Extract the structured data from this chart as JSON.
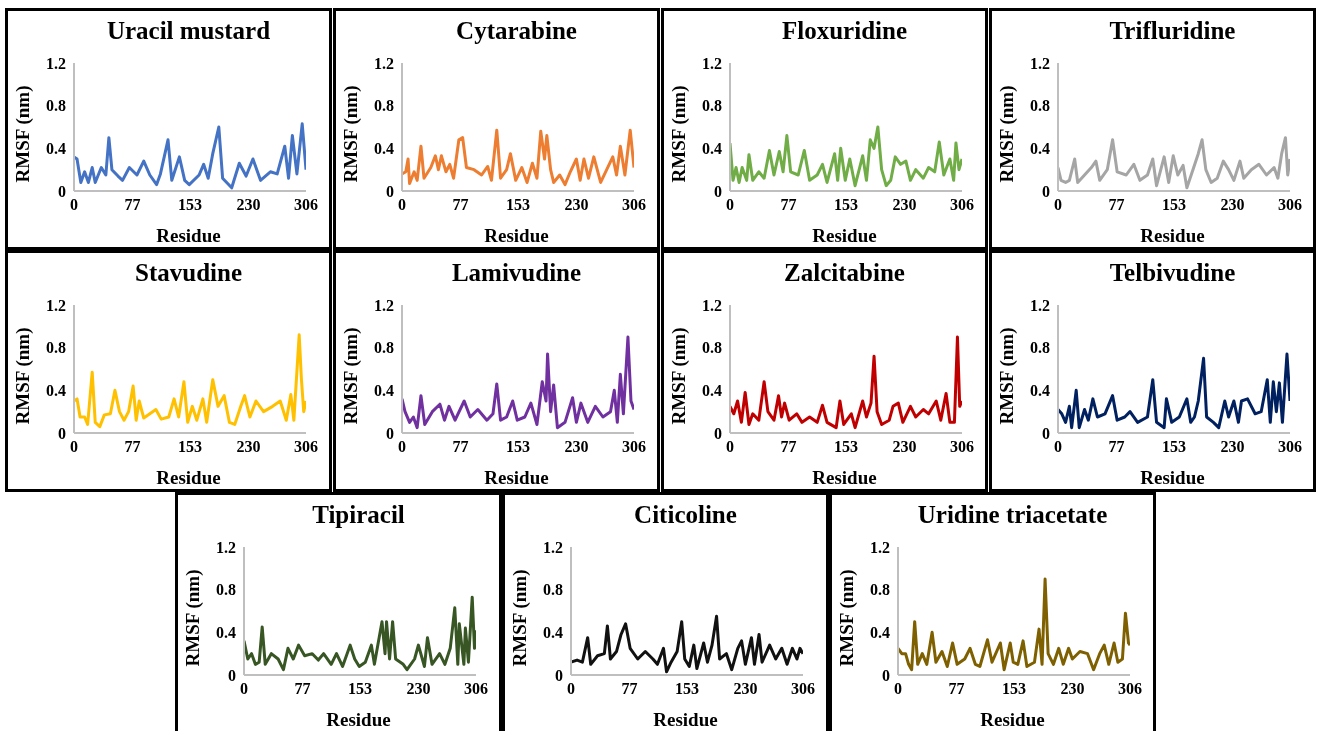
{
  "chart_data": [
    {
      "type": "line",
      "title": "Uracil mustard",
      "xlabel": "Residue",
      "ylabel": "RMSF (nm)",
      "xlim": [
        0,
        306
      ],
      "xticks": [
        0,
        77,
        153,
        230,
        306
      ],
      "ylim": [
        0,
        1.2
      ],
      "yticks": [
        0,
        0.4,
        0.8,
        1.2
      ],
      "x": [
        0,
        4,
        9,
        14,
        19,
        24,
        28,
        36,
        42,
        46,
        50,
        58,
        64,
        73,
        83,
        92,
        100,
        109,
        114,
        124,
        129,
        139,
        146,
        152,
        165,
        171,
        177,
        183,
        191,
        196,
        208,
        218,
        227,
        236,
        246,
        259,
        268,
        278,
        283,
        288,
        294,
        301,
        306
      ],
      "series": [
        {
          "color": "#4472c4",
          "values": [
            0.32,
            0.3,
            0.08,
            0.18,
            0.08,
            0.22,
            0.08,
            0.22,
            0.15,
            0.5,
            0.2,
            0.14,
            0.1,
            0.22,
            0.15,
            0.28,
            0.15,
            0.06,
            0.16,
            0.48,
            0.1,
            0.32,
            0.1,
            0.06,
            0.15,
            0.25,
            0.12,
            0.35,
            0.6,
            0.12,
            0.03,
            0.26,
            0.14,
            0.3,
            0.1,
            0.18,
            0.16,
            0.42,
            0.12,
            0.52,
            0.16,
            0.63,
            0.2
          ]
        }
      ]
    },
    {
      "type": "line",
      "title": "Cytarabine",
      "xlabel": "Residue",
      "ylabel": "RMSF (nm)",
      "xlim": [
        0,
        306
      ],
      "xticks": [
        0,
        77,
        153,
        230,
        306
      ],
      "ylim": [
        0,
        1.2
      ],
      "yticks": [
        0,
        0.4,
        0.8,
        1.2
      ],
      "x": [
        0,
        5,
        8,
        10,
        16,
        20,
        25,
        29,
        38,
        44,
        48,
        52,
        58,
        63,
        68,
        75,
        80,
        85,
        95,
        105,
        113,
        118,
        125,
        130,
        138,
        143,
        150,
        158,
        165,
        172,
        178,
        183,
        188,
        191,
        196,
        200,
        208,
        215,
        222,
        230,
        235,
        240,
        246,
        253,
        262,
        270,
        278,
        283,
        288,
        294,
        301,
        306
      ],
      "series": [
        {
          "color": "#ed7d31",
          "values": [
            0.16,
            0.18,
            0.3,
            0.07,
            0.18,
            0.1,
            0.42,
            0.12,
            0.22,
            0.33,
            0.2,
            0.33,
            0.18,
            0.25,
            0.12,
            0.48,
            0.5,
            0.22,
            0.2,
            0.15,
            0.23,
            0.1,
            0.57,
            0.12,
            0.2,
            0.35,
            0.1,
            0.22,
            0.08,
            0.26,
            0.12,
            0.56,
            0.3,
            0.52,
            0.2,
            0.08,
            0.15,
            0.06,
            0.18,
            0.3,
            0.1,
            0.3,
            0.12,
            0.32,
            0.08,
            0.2,
            0.32,
            0.15,
            0.42,
            0.15,
            0.57,
            0.22
          ]
        }
      ]
    },
    {
      "type": "line",
      "title": "Floxuridine",
      "xlabel": "Residue",
      "ylabel": "RMSF (nm)",
      "xlim": [
        0,
        306
      ],
      "xticks": [
        0,
        77,
        153,
        230,
        306
      ],
      "ylim": [
        0,
        1.2
      ],
      "yticks": [
        0,
        0.4,
        0.8,
        1.2
      ],
      "x": [
        0,
        4,
        8,
        12,
        16,
        22,
        25,
        30,
        38,
        45,
        52,
        58,
        65,
        70,
        75,
        80,
        90,
        98,
        105,
        115,
        122,
        128,
        138,
        142,
        146,
        152,
        158,
        165,
        175,
        180,
        185,
        190,
        195,
        200,
        206,
        212,
        218,
        225,
        232,
        238,
        245,
        255,
        262,
        270,
        276,
        282,
        290,
        295,
        298,
        302,
        306
      ],
      "series": [
        {
          "color": "#70ad47",
          "values": [
            0.45,
            0.1,
            0.22,
            0.08,
            0.22,
            0.1,
            0.34,
            0.1,
            0.18,
            0.12,
            0.38,
            0.15,
            0.37,
            0.18,
            0.52,
            0.18,
            0.15,
            0.38,
            0.1,
            0.15,
            0.25,
            0.08,
            0.35,
            0.1,
            0.4,
            0.1,
            0.3,
            0.05,
            0.33,
            0.1,
            0.48,
            0.4,
            0.6,
            0.2,
            0.05,
            0.1,
            0.32,
            0.25,
            0.28,
            0.1,
            0.2,
            0.12,
            0.22,
            0.18,
            0.46,
            0.15,
            0.3,
            0.1,
            0.45,
            0.2,
            0.3
          ]
        }
      ]
    },
    {
      "type": "line",
      "title": "Trifluridine",
      "xlabel": "Residue",
      "ylabel": "RMSF (nm)",
      "xlim": [
        0,
        306
      ],
      "xticks": [
        0,
        77,
        153,
        230,
        306
      ],
      "ylim": [
        0,
        1.2
      ],
      "yticks": [
        0,
        0.4,
        0.8,
        1.2
      ],
      "x": [
        0,
        4,
        10,
        15,
        22,
        26,
        35,
        44,
        50,
        55,
        65,
        72,
        78,
        90,
        100,
        108,
        118,
        125,
        130,
        140,
        146,
        152,
        158,
        165,
        170,
        178,
        185,
        190,
        195,
        202,
        210,
        218,
        225,
        232,
        240,
        245,
        255,
        265,
        275,
        285,
        290,
        295,
        300,
        303,
        306
      ],
      "series": [
        {
          "color": "#a5a5a5",
          "values": [
            0.22,
            0.1,
            0.08,
            0.1,
            0.3,
            0.08,
            0.15,
            0.22,
            0.28,
            0.1,
            0.2,
            0.48,
            0.18,
            0.15,
            0.25,
            0.1,
            0.15,
            0.3,
            0.05,
            0.32,
            0.08,
            0.33,
            0.15,
            0.24,
            0.03,
            0.2,
            0.35,
            0.48,
            0.2,
            0.08,
            0.12,
            0.28,
            0.2,
            0.1,
            0.28,
            0.12,
            0.2,
            0.25,
            0.15,
            0.22,
            0.12,
            0.35,
            0.5,
            0.15,
            0.3
          ]
        }
      ]
    },
    {
      "type": "line",
      "title": "Stavudine",
      "xlabel": "Residue",
      "ylabel": "RMSF (nm)",
      "xlim": [
        0,
        306
      ],
      "xticks": [
        0,
        77,
        153,
        230,
        306
      ],
      "ylim": [
        0,
        1.2
      ],
      "yticks": [
        0,
        0.4,
        0.8,
        1.2
      ],
      "x": [
        0,
        4,
        8,
        14,
        18,
        24,
        28,
        34,
        40,
        48,
        54,
        60,
        66,
        72,
        78,
        82,
        86,
        92,
        100,
        108,
        115,
        125,
        132,
        138,
        145,
        150,
        156,
        162,
        170,
        175,
        183,
        190,
        198,
        205,
        212,
        220,
        225,
        232,
        240,
        250,
        262,
        272,
        280,
        286,
        290,
        297,
        300,
        303,
        306
      ],
      "series": [
        {
          "color": "#ffc000",
          "values": [
            0.3,
            0.32,
            0.15,
            0.15,
            0.08,
            0.57,
            0.1,
            0.06,
            0.17,
            0.18,
            0.4,
            0.2,
            0.12,
            0.2,
            0.44,
            0.12,
            0.3,
            0.14,
            0.18,
            0.22,
            0.13,
            0.15,
            0.32,
            0.15,
            0.48,
            0.1,
            0.25,
            0.12,
            0.32,
            0.1,
            0.5,
            0.25,
            0.35,
            0.1,
            0.08,
            0.25,
            0.35,
            0.15,
            0.3,
            0.2,
            0.25,
            0.3,
            0.12,
            0.36,
            0.12,
            0.92,
            0.5,
            0.2,
            0.3
          ]
        }
      ]
    },
    {
      "type": "line",
      "title": "Lamivudine",
      "xlabel": "Residue",
      "ylabel": "RMSF (nm)",
      "xlim": [
        0,
        306
      ],
      "xticks": [
        0,
        77,
        153,
        230,
        306
      ],
      "ylim": [
        0,
        1.2
      ],
      "yticks": [
        0,
        0.4,
        0.8,
        1.2
      ],
      "x": [
        0,
        4,
        10,
        15,
        20,
        25,
        30,
        40,
        50,
        56,
        62,
        70,
        82,
        90,
        100,
        112,
        120,
        125,
        130,
        138,
        146,
        152,
        162,
        170,
        178,
        185,
        190,
        192,
        196,
        200,
        205,
        215,
        225,
        230,
        236,
        245,
        255,
        265,
        275,
        280,
        284,
        288,
        292,
        298,
        302,
        306
      ],
      "series": [
        {
          "color": "#7030a0",
          "values": [
            0.32,
            0.2,
            0.1,
            0.15,
            0.05,
            0.35,
            0.08,
            0.2,
            0.27,
            0.12,
            0.25,
            0.12,
            0.3,
            0.15,
            0.22,
            0.12,
            0.18,
            0.46,
            0.12,
            0.15,
            0.3,
            0.12,
            0.15,
            0.28,
            0.08,
            0.48,
            0.3,
            0.74,
            0.2,
            0.45,
            0.05,
            0.1,
            0.33,
            0.1,
            0.28,
            0.1,
            0.25,
            0.15,
            0.2,
            0.4,
            0.1,
            0.55,
            0.18,
            0.9,
            0.3,
            0.22
          ]
        }
      ]
    },
    {
      "type": "line",
      "title": "Zalcitabine",
      "xlabel": "Residue",
      "ylabel": "RMSF (nm)",
      "xlim": [
        0,
        306
      ],
      "xticks": [
        0,
        77,
        153,
        230,
        306
      ],
      "ylim": [
        0,
        1.2
      ],
      "yticks": [
        0,
        0.4,
        0.8,
        1.2
      ],
      "x": [
        0,
        5,
        10,
        15,
        20,
        25,
        30,
        38,
        45,
        50,
        58,
        64,
        68,
        72,
        78,
        88,
        95,
        105,
        115,
        122,
        128,
        140,
        145,
        150,
        160,
        165,
        175,
        180,
        186,
        190,
        194,
        200,
        210,
        215,
        222,
        228,
        238,
        245,
        255,
        262,
        272,
        278,
        285,
        290,
        296,
        300,
        303,
        306
      ],
      "series": [
        {
          "color": "#c00000",
          "values": [
            0.25,
            0.18,
            0.3,
            0.1,
            0.38,
            0.08,
            0.18,
            0.12,
            0.48,
            0.2,
            0.12,
            0.35,
            0.15,
            0.28,
            0.12,
            0.18,
            0.1,
            0.15,
            0.1,
            0.26,
            0.1,
            0.05,
            0.3,
            0.08,
            0.18,
            0.05,
            0.3,
            0.15,
            0.28,
            0.72,
            0.2,
            0.08,
            0.12,
            0.25,
            0.28,
            0.1,
            0.25,
            0.15,
            0.22,
            0.18,
            0.3,
            0.12,
            0.37,
            0.1,
            0.1,
            0.9,
            0.25,
            0.3
          ]
        }
      ]
    },
    {
      "type": "line",
      "title": "Telbivudine",
      "xlabel": "Residue",
      "ylabel": "RMSF (nm)",
      "xlim": [
        0,
        306
      ],
      "xticks": [
        0,
        77,
        153,
        230,
        306
      ],
      "ylim": [
        0,
        1.2
      ],
      "yticks": [
        0,
        0.4,
        0.8,
        1.2
      ],
      "x": [
        0,
        5,
        10,
        15,
        18,
        24,
        28,
        35,
        40,
        46,
        52,
        62,
        72,
        78,
        88,
        95,
        105,
        118,
        125,
        130,
        140,
        143,
        150,
        160,
        170,
        175,
        180,
        185,
        192,
        196,
        205,
        212,
        220,
        225,
        232,
        238,
        242,
        250,
        260,
        268,
        272,
        276,
        280,
        284,
        288,
        292,
        296,
        302,
        306
      ],
      "series": [
        {
          "color": "#002060",
          "values": [
            0.22,
            0.18,
            0.1,
            0.25,
            0.05,
            0.4,
            0.05,
            0.22,
            0.12,
            0.32,
            0.15,
            0.18,
            0.35,
            0.12,
            0.15,
            0.2,
            0.1,
            0.15,
            0.5,
            0.1,
            0.05,
            0.32,
            0.1,
            0.15,
            0.32,
            0.1,
            0.15,
            0.3,
            0.7,
            0.15,
            0.1,
            0.05,
            0.3,
            0.15,
            0.3,
            0.1,
            0.3,
            0.32,
            0.18,
            0.2,
            0.35,
            0.5,
            0.1,
            0.48,
            0.2,
            0.47,
            0.1,
            0.74,
            0.3
          ]
        }
      ]
    },
    {
      "type": "line",
      "title": "Tipiracil",
      "xlabel": "Residue",
      "ylabel": "RMSF (nm)",
      "xlim": [
        0,
        306
      ],
      "xticks": [
        0,
        77,
        153,
        230,
        306
      ],
      "ylim": [
        0,
        1.2
      ],
      "yticks": [
        0,
        0.4,
        0.8,
        1.2
      ],
      "x": [
        0,
        5,
        10,
        15,
        20,
        24,
        28,
        36,
        45,
        52,
        58,
        65,
        72,
        80,
        90,
        98,
        105,
        115,
        122,
        130,
        140,
        146,
        152,
        160,
        168,
        172,
        182,
        186,
        188,
        192,
        196,
        200,
        210,
        215,
        225,
        230,
        238,
        242,
        248,
        258,
        265,
        272,
        278,
        282,
        284,
        290,
        292,
        296,
        301,
        304,
        306
      ],
      "series": [
        {
          "color": "#375623",
          "values": [
            0.32,
            0.15,
            0.2,
            0.1,
            0.12,
            0.45,
            0.1,
            0.2,
            0.15,
            0.05,
            0.25,
            0.15,
            0.28,
            0.18,
            0.2,
            0.14,
            0.2,
            0.1,
            0.2,
            0.08,
            0.28,
            0.15,
            0.08,
            0.12,
            0.28,
            0.1,
            0.5,
            0.2,
            0.5,
            0.15,
            0.5,
            0.15,
            0.1,
            0.05,
            0.15,
            0.28,
            0.08,
            0.35,
            0.1,
            0.2,
            0.1,
            0.25,
            0.63,
            0.1,
            0.48,
            0.1,
            0.44,
            0.12,
            0.73,
            0.25,
            0.42
          ]
        }
      ]
    },
    {
      "type": "line",
      "title": "Citicoline",
      "xlabel": "Residue",
      "ylabel": "RMSF (nm)",
      "xlim": [
        0,
        306
      ],
      "xticks": [
        0,
        77,
        153,
        230,
        306
      ],
      "ylim": [
        0,
        1.2
      ],
      "yticks": [
        0,
        0.4,
        0.8,
        1.2
      ],
      "x": [
        0,
        8,
        15,
        22,
        26,
        35,
        44,
        48,
        52,
        60,
        66,
        72,
        78,
        88,
        98,
        108,
        114,
        122,
        126,
        132,
        140,
        146,
        150,
        156,
        162,
        166,
        175,
        180,
        186,
        192,
        196,
        205,
        212,
        220,
        225,
        230,
        238,
        242,
        248,
        252,
        262,
        270,
        278,
        285,
        292,
        298,
        302,
        306
      ],
      "series": [
        {
          "color": "#111111",
          "values": [
            0.12,
            0.14,
            0.12,
            0.35,
            0.1,
            0.18,
            0.2,
            0.46,
            0.15,
            0.22,
            0.38,
            0.48,
            0.25,
            0.15,
            0.22,
            0.15,
            0.1,
            0.25,
            0.03,
            0.12,
            0.22,
            0.5,
            0.15,
            0.08,
            0.28,
            0.06,
            0.3,
            0.12,
            0.28,
            0.55,
            0.15,
            0.2,
            0.05,
            0.25,
            0.32,
            0.1,
            0.35,
            0.1,
            0.38,
            0.12,
            0.28,
            0.15,
            0.25,
            0.1,
            0.25,
            0.15,
            0.25,
            0.2
          ]
        }
      ]
    },
    {
      "type": "line",
      "title": "Uridine triacetate",
      "xlabel": "Residue",
      "ylabel": "RMSF (nm)",
      "xlim": [
        0,
        306
      ],
      "xticks": [
        0,
        77,
        153,
        230,
        306
      ],
      "ylim": [
        0,
        1.2
      ],
      "yticks": [
        0,
        0.4,
        0.8,
        1.2
      ],
      "x": [
        0,
        5,
        10,
        14,
        18,
        22,
        26,
        32,
        38,
        45,
        50,
        58,
        65,
        72,
        78,
        88,
        95,
        102,
        108,
        118,
        124,
        135,
        140,
        148,
        152,
        158,
        165,
        170,
        180,
        186,
        190,
        194,
        198,
        205,
        212,
        218,
        225,
        230,
        240,
        250,
        258,
        266,
        272,
        278,
        285,
        290,
        296,
        300,
        304,
        306
      ],
      "series": [
        {
          "color": "#7f6000",
          "values": [
            0.25,
            0.2,
            0.2,
            0.1,
            0.05,
            0.5,
            0.1,
            0.2,
            0.1,
            0.4,
            0.12,
            0.22,
            0.08,
            0.3,
            0.1,
            0.15,
            0.25,
            0.1,
            0.08,
            0.33,
            0.12,
            0.3,
            0.05,
            0.3,
            0.12,
            0.1,
            0.32,
            0.08,
            0.12,
            0.43,
            0.1,
            0.9,
            0.2,
            0.1,
            0.25,
            0.1,
            0.25,
            0.15,
            0.22,
            0.2,
            0.05,
            0.2,
            0.28,
            0.1,
            0.3,
            0.12,
            0.15,
            0.58,
            0.3,
            0.28
          ]
        }
      ]
    }
  ]
}
